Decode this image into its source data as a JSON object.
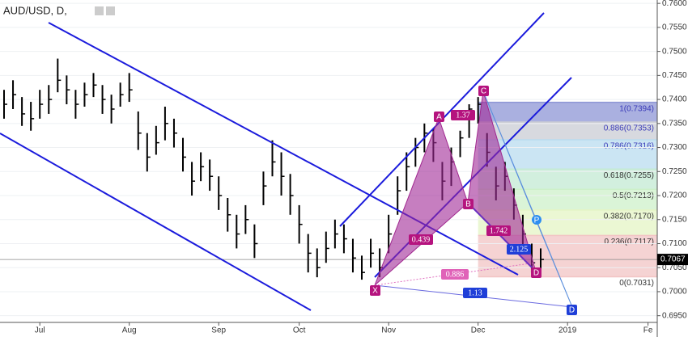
{
  "chart_data": {
    "type": "hlc",
    "title": "AUD/USD, D,",
    "categories": [
      null,
      null,
      null,
      null,
      "Jul",
      null,
      null,
      null,
      null,
      null,
      null,
      null,
      null,
      null,
      "Aug",
      null,
      null,
      null,
      null,
      null,
      null,
      null,
      null,
      null,
      "Sep",
      null,
      null,
      null,
      null,
      null,
      null,
      null,
      null,
      "Oct",
      null,
      null,
      null,
      null,
      null,
      null,
      null,
      null,
      null,
      "Nov",
      null,
      null,
      null,
      null,
      null,
      null,
      null,
      null,
      null,
      "Dec",
      null,
      null,
      null,
      null,
      null,
      null,
      null,
      null,
      null,
      "2019",
      null,
      null,
      null,
      null,
      null,
      null,
      null,
      null,
      "Fe",
      null
    ],
    "series": [
      {
        "name": "High",
        "values": [
          0.742,
          0.744,
          0.7405,
          0.7395,
          0.742,
          0.743,
          0.7485,
          0.745,
          0.742,
          0.7435,
          0.7455,
          0.743,
          0.741,
          0.7435,
          0.7455,
          0.7375,
          0.733,
          0.7345,
          0.7385,
          0.736,
          0.732,
          0.727,
          0.729,
          0.7275,
          0.724,
          0.7195,
          0.716,
          0.718,
          0.714,
          0.725,
          0.7315,
          0.729,
          0.7245,
          0.718,
          0.712,
          0.709,
          0.7125,
          0.715,
          0.714,
          0.711,
          0.7075,
          0.711,
          0.709,
          0.716,
          0.724,
          0.729,
          0.732,
          0.735,
          0.734,
          0.727,
          0.73,
          0.7335,
          0.739,
          0.7405,
          0.733,
          0.726,
          0.727,
          0.7215,
          0.716,
          0.71,
          0.709,
          null,
          null,
          null,
          null,
          null,
          null,
          null,
          null,
          null,
          null,
          null,
          null,
          null
        ]
      },
      {
        "name": "Low",
        "values": [
          0.736,
          0.738,
          0.7345,
          0.7335,
          0.736,
          0.737,
          0.7415,
          0.739,
          0.736,
          0.7385,
          0.7405,
          0.737,
          0.735,
          0.7385,
          0.7395,
          0.7295,
          0.725,
          0.7285,
          0.7315,
          0.73,
          0.725,
          0.72,
          0.723,
          0.721,
          0.717,
          0.7125,
          0.709,
          0.712,
          0.707,
          0.718,
          0.724,
          0.72,
          0.716,
          0.71,
          0.704,
          0.703,
          0.706,
          0.709,
          0.708,
          0.704,
          0.7025,
          0.705,
          0.703,
          0.708,
          0.716,
          0.721,
          0.726,
          0.729,
          0.727,
          0.719,
          0.722,
          0.728,
          0.732,
          0.735,
          0.726,
          0.719,
          0.721,
          0.715,
          0.709,
          0.704,
          0.7045,
          null,
          null,
          null,
          null,
          null,
          null,
          null,
          null,
          null,
          null,
          null,
          null,
          null
        ]
      },
      {
        "name": "Close",
        "values": [
          0.739,
          0.741,
          0.737,
          0.736,
          0.739,
          0.74,
          0.744,
          0.742,
          0.739,
          0.741,
          0.743,
          0.74,
          0.738,
          0.741,
          0.742,
          0.733,
          0.728,
          0.731,
          0.735,
          0.733,
          0.728,
          0.723,
          0.726,
          0.724,
          0.72,
          0.716,
          0.712,
          0.715,
          0.71,
          0.722,
          0.727,
          0.724,
          0.72,
          0.714,
          0.708,
          0.705,
          0.709,
          0.712,
          0.711,
          0.707,
          0.704,
          0.708,
          0.705,
          0.712,
          0.721,
          0.726,
          0.73,
          0.733,
          0.731,
          0.723,
          0.727,
          0.732,
          0.738,
          0.739,
          0.729,
          0.722,
          0.724,
          0.718,
          0.712,
          0.706,
          0.7067,
          null,
          null,
          null,
          null,
          null,
          null,
          null,
          null,
          null,
          null,
          null,
          null,
          null
        ]
      }
    ],
    "bar_color": "#000000",
    "ylim": [
      0.6936,
      0.7607
    ],
    "yticks": [
      {
        "value": 0.695,
        "label": "0.6950"
      },
      {
        "value": 0.7,
        "label": "0.7000"
      },
      {
        "value": 0.705,
        "label": "0.7050"
      },
      {
        "value": 0.71,
        "label": "0.7100"
      },
      {
        "value": 0.715,
        "label": "0.7150"
      },
      {
        "value": 0.72,
        "label": "0.7200"
      },
      {
        "value": 0.725,
        "label": "0.7250"
      },
      {
        "value": 0.73,
        "label": "0.7300"
      },
      {
        "value": 0.735,
        "label": "0.7350"
      },
      {
        "value": 0.74,
        "label": "0.7400"
      },
      {
        "value": 0.745,
        "label": "0.7450"
      },
      {
        "value": 0.75,
        "label": "0.7500"
      },
      {
        "value": 0.755,
        "label": "0.7550"
      },
      {
        "value": 0.76,
        "label": "0.7600"
      }
    ],
    "last_price": {
      "value": 0.7067,
      "label": "0.7067"
    },
    "fib_levels": [
      {
        "label": "1(0.7394)",
        "value": 0.7394,
        "color": "#8e96d6"
      },
      {
        "label": "0.886(0.7353)",
        "value": 0.7353,
        "color": "#c9ccd4"
      },
      {
        "label": "0.786(0.7316)",
        "value": 0.7316,
        "color": "#b9dcef"
      },
      {
        "label": "0.618(0.7255)",
        "value": 0.7255,
        "color": "#c3ead3"
      },
      {
        "label": "0.5(0.7213)",
        "value": 0.7213,
        "color": "#cdf0c9"
      },
      {
        "label": "0.382(0.7170)",
        "value": 0.717,
        "color": "#e4f4c4"
      },
      {
        "label": "0.236(0.7117)",
        "value": 0.7117,
        "color": "#f2c4c4"
      },
      {
        "label": "0(0.7031)",
        "value": 0.7031,
        "color": "#f2c4c4"
      }
    ],
    "pattern": {
      "points": [
        "X",
        "A",
        "B",
        "C",
        "D"
      ],
      "ratios": [
        "1.37",
        "0.439",
        "1.742",
        "2.125",
        "0.886",
        "1.13"
      ],
      "extra_points": [
        "P",
        "D"
      ]
    }
  }
}
